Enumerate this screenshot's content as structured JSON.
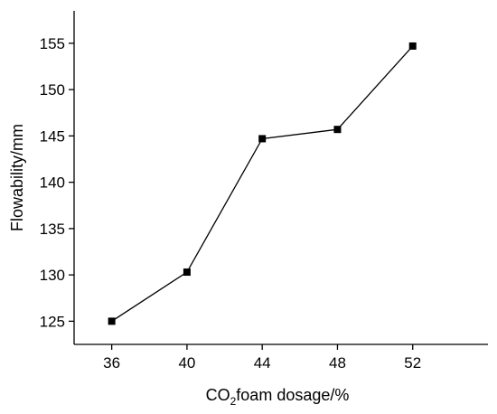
{
  "chart_data": {
    "type": "line",
    "x_ticks": [
      "36",
      "40",
      "44",
      "48",
      "52"
    ],
    "y_ticks": [
      "125",
      "130",
      "135",
      "140",
      "145",
      "150",
      "155"
    ],
    "xlabel": {
      "main": "CO",
      "sub": "2",
      "rest": "foam dosage/%"
    },
    "ylabel": "Flowability/mm",
    "xlim": [
      34,
      56
    ],
    "ylim": [
      122.5,
      158.5
    ],
    "series": [
      {
        "marker": "square",
        "color": "#000000",
        "x": [
          36,
          40,
          44,
          48,
          52
        ],
        "y": [
          125.0,
          130.3,
          144.7,
          145.7,
          154.7
        ]
      }
    ]
  }
}
